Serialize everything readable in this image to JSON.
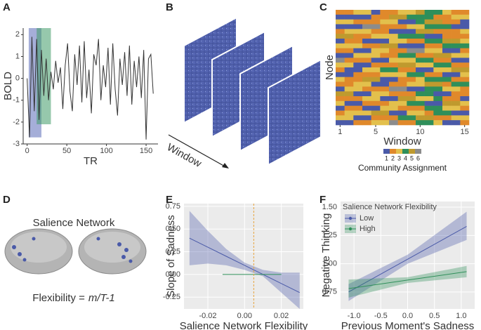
{
  "panel_labels": [
    "A",
    "B",
    "C",
    "D",
    "E",
    "F"
  ],
  "diagram_b": {
    "axis_label": "Window"
  },
  "diagram_d": {
    "title": "Salience Network",
    "formula_prefix": "Flexibility =",
    "formula": "m/T-1"
  },
  "chart_data": [
    {
      "type": "line",
      "x_label": "TR",
      "y_label": "BOLD",
      "xlim": [
        -5,
        165
      ],
      "ylim": [
        -3,
        2.3
      ],
      "xticks": [
        0,
        50,
        100,
        150
      ],
      "yticks": [
        -3,
        -2,
        -1,
        0,
        1,
        2
      ],
      "highlights": [
        {
          "x0": 2,
          "x1": 18,
          "y0": -2.7,
          "y1": 2.3,
          "color": "#5b6bb8"
        },
        {
          "x0": 12,
          "x1": 30,
          "y0": -2.1,
          "y1": 2.3,
          "color": "#3f9a68"
        }
      ],
      "series": [
        {
          "color": "#333333",
          "x": [
            0,
            3,
            6,
            9,
            12,
            15,
            18,
            21,
            24,
            27,
            30,
            33,
            36,
            39,
            42,
            45,
            48,
            51,
            54,
            57,
            60,
            63,
            66,
            69,
            72,
            75,
            78,
            81,
            84,
            87,
            90,
            93,
            96,
            99,
            102,
            105,
            108,
            111,
            114,
            117,
            120,
            123,
            126,
            129,
            132,
            135,
            138,
            141,
            144,
            147,
            150,
            153,
            156,
            159
          ],
          "values": [
            0.0,
            -2.7,
            1.9,
            -1.5,
            1.8,
            -1.9,
            1.3,
            -0.8,
            0.9,
            -1.0,
            0.3,
            -0.5,
            0.8,
            -0.2,
            0.5,
            -1.4,
            0.6,
            1.6,
            -0.6,
            -1.5,
            1.1,
            -0.3,
            1.5,
            -1.1,
            1.7,
            -0.9,
            0.4,
            -1.6,
            1.1,
            0.6,
            1.8,
            -1.0,
            0.6,
            -0.4,
            1.4,
            -1.2,
            1.6,
            -0.5,
            -1.7,
            0.9,
            -0.3,
            1.2,
            -0.8,
            1.5,
            -1.2,
            0.8,
            -0.4,
            1.0,
            -0.9,
            1.3,
            -2.8,
            0.9,
            1.1,
            -0.7
          ]
        }
      ]
    },
    {
      "type": "heatmap",
      "x_label": "Window",
      "y_label": "Node",
      "xlim": [
        0.5,
        15.5
      ],
      "xticks": [
        1,
        5,
        10,
        15
      ],
      "legend_title": "Community Assignment",
      "community_labels": [
        1,
        2,
        3,
        4,
        5,
        6
      ],
      "colors": [
        "#4a5aa8",
        "#e0892b",
        "#e3c04c",
        "#2f8f5a",
        "#bf9a2e",
        "#8c8c8c"
      ],
      "z": [
        [
          2,
          2,
          3,
          3,
          1,
          2,
          2,
          3,
          3,
          5,
          4,
          4,
          3,
          2,
          2
        ],
        [
          1,
          1,
          1,
          1,
          2,
          2,
          5,
          5,
          4,
          4,
          4,
          2,
          2,
          3,
          3
        ],
        [
          3,
          3,
          2,
          2,
          2,
          3,
          3,
          1,
          1,
          4,
          5,
          5,
          2,
          2,
          1
        ],
        [
          1,
          1,
          1,
          6,
          6,
          2,
          2,
          2,
          3,
          3,
          4,
          4,
          4,
          1,
          1
        ],
        [
          2,
          3,
          3,
          3,
          2,
          2,
          1,
          1,
          1,
          5,
          5,
          2,
          2,
          2,
          3
        ],
        [
          5,
          5,
          2,
          2,
          3,
          3,
          3,
          4,
          4,
          4,
          1,
          1,
          2,
          2,
          2
        ],
        [
          1,
          2,
          2,
          1,
          1,
          1,
          3,
          3,
          2,
          2,
          4,
          4,
          5,
          5,
          3
        ],
        [
          3,
          3,
          3,
          2,
          2,
          5,
          5,
          1,
          1,
          1,
          2,
          2,
          4,
          4,
          4
        ],
        [
          2,
          2,
          1,
          1,
          3,
          3,
          2,
          2,
          6,
          6,
          3,
          3,
          1,
          1,
          2
        ],
        [
          1,
          1,
          3,
          3,
          3,
          2,
          2,
          4,
          4,
          2,
          2,
          5,
          5,
          3,
          3
        ],
        [
          6,
          2,
          2,
          2,
          1,
          1,
          3,
          3,
          3,
          4,
          4,
          2,
          2,
          1,
          1
        ],
        [
          3,
          3,
          1,
          1,
          2,
          2,
          2,
          5,
          5,
          3,
          3,
          4,
          4,
          2,
          2
        ],
        [
          2,
          1,
          1,
          3,
          3,
          4,
          4,
          2,
          2,
          1,
          1,
          3,
          3,
          5,
          5
        ],
        [
          1,
          1,
          2,
          2,
          2,
          3,
          3,
          3,
          4,
          4,
          2,
          2,
          1,
          1,
          3
        ],
        [
          3,
          2,
          2,
          5,
          5,
          1,
          1,
          2,
          2,
          3,
          4,
          4,
          4,
          2,
          2
        ],
        [
          2,
          2,
          3,
          3,
          1,
          1,
          2,
          2,
          3,
          3,
          5,
          5,
          2,
          4,
          4
        ],
        [
          1,
          3,
          3,
          2,
          2,
          2,
          6,
          6,
          1,
          1,
          4,
          4,
          3,
          3,
          2
        ],
        [
          5,
          5,
          1,
          1,
          3,
          3,
          2,
          2,
          2,
          4,
          4,
          1,
          1,
          2,
          2
        ],
        [
          2,
          2,
          2,
          3,
          3,
          1,
          1,
          5,
          5,
          3,
          3,
          4,
          2,
          2,
          1
        ],
        [
          3,
          1,
          1,
          2,
          2,
          2,
          3,
          3,
          4,
          4,
          1,
          1,
          5,
          5,
          3
        ],
        [
          1,
          2,
          2,
          1,
          1,
          3,
          3,
          2,
          2,
          2,
          4,
          4,
          3,
          3,
          2
        ],
        [
          2,
          3,
          3,
          3,
          5,
          5,
          1,
          1,
          3,
          3,
          2,
          4,
          4,
          1,
          1
        ],
        [
          3,
          3,
          1,
          1,
          2,
          2,
          2,
          4,
          4,
          5,
          5,
          2,
          2,
          3,
          3
        ],
        [
          1,
          1,
          2,
          2,
          3,
          3,
          6,
          2,
          2,
          4,
          4,
          3,
          1,
          1,
          2
        ]
      ]
    },
    {
      "type": "line",
      "x_label": "Salience Network Flexibility",
      "y_label": "Slope of Sadness",
      "xlim": [
        -0.033,
        0.032
      ],
      "ylim": [
        -0.38,
        0.78
      ],
      "grid": true,
      "panel_background": "#ebebeb",
      "xticks": [
        {
          "value": -0.02,
          "label": "-0.02"
        },
        {
          "value": 0,
          "label": "0.00"
        },
        {
          "value": 0.02,
          "label": "0.02"
        }
      ],
      "yticks": [
        {
          "value": -0.25,
          "label": "-0.25"
        },
        {
          "value": 0,
          "label": "0.00"
        },
        {
          "value": 0.25,
          "label": "0.25"
        },
        {
          "value": 0.5,
          "label": "0.50"
        },
        {
          "value": 0.75,
          "label": "0.75"
        }
      ],
      "reference_x": {
        "value": 0.005,
        "color": "#e8a33c"
      },
      "series": [
        {
          "color": "#4a5aa8",
          "x": [
            -0.03,
            -0.02,
            -0.01,
            0,
            0.01,
            0.02,
            0.03
          ],
          "values": [
            0.4,
            0.3,
            0.2,
            0.1,
            0.0,
            -0.1,
            -0.2
          ],
          "upper": [
            0.7,
            0.48,
            0.28,
            0.13,
            0.05,
            0.02,
            0.02
          ],
          "lower": [
            0.1,
            0.12,
            0.1,
            0.05,
            -0.02,
            -0.2,
            -0.38
          ]
        },
        {
          "color": "#2f8f5a",
          "x": [
            -0.012,
            0.02
          ],
          "values": [
            0,
            0
          ]
        }
      ]
    },
    {
      "type": "line",
      "x_label": "Previous Moment's Sadness",
      "y_label": "Negative Thinking",
      "xlim": [
        -1.25,
        1.25
      ],
      "ylim": [
        0.6,
        1.55
      ],
      "grid": true,
      "panel_background": "#ebebeb",
      "xticks": [
        {
          "value": -1,
          "label": "-1.0"
        },
        {
          "value": -0.5,
          "label": "-0.5"
        },
        {
          "value": 0,
          "label": "0.0"
        },
        {
          "value": 0.5,
          "label": "0.5"
        },
        {
          "value": 1,
          "label": "1.0"
        }
      ],
      "yticks": [
        0.75,
        {
          "value": 1,
          "label": "1.00"
        },
        1.25,
        {
          "value": 1.5,
          "label": "1.50"
        }
      ],
      "legend_title": "Salience Network Flexibility",
      "series": [
        {
          "name": "Low",
          "color": "#4a5aa8",
          "x": [
            -1.1,
            0,
            1.1
          ],
          "values": [
            0.75,
            1.04,
            1.33
          ],
          "upper": [
            0.82,
            1.08,
            1.46
          ],
          "lower": [
            0.67,
            1.0,
            1.21
          ]
        },
        {
          "name": "High",
          "color": "#2f8f5a",
          "x": [
            -1.1,
            0,
            1.1
          ],
          "values": [
            0.78,
            0.855,
            0.93
          ],
          "upper": [
            0.86,
            0.88,
            0.98
          ],
          "lower": [
            0.7,
            0.83,
            0.88
          ]
        }
      ]
    }
  ]
}
